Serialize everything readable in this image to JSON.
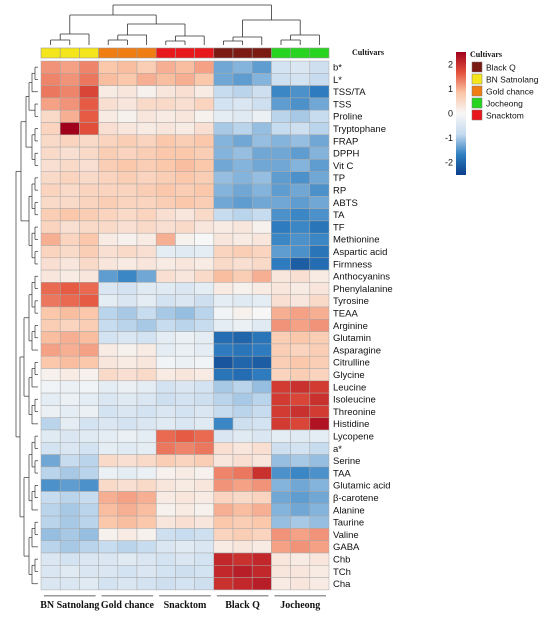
{
  "chart_data": {
    "type": "heatmap",
    "annotation_title": "Cultivars",
    "column_groups": [
      {
        "name": "BN Satnolang",
        "color": "#f5e61b",
        "n": 3
      },
      {
        "name": "Gold chance",
        "color": "#ef7d12",
        "n": 3
      },
      {
        "name": "Snacktom",
        "color": "#e8171b",
        "n": 3
      },
      {
        "name": "Black Q",
        "color": "#7a1a12",
        "n": 3
      },
      {
        "name": "Jocheong",
        "color": "#27d41f",
        "n": 3
      }
    ],
    "column_order": [
      "BN Satnolang",
      "Gold chance",
      "Snacktom",
      "Black Q",
      "Jocheong"
    ],
    "legend_order": [
      "Black Q",
      "BN Satnolang",
      "Gold chance",
      "Jocheong",
      "Snacktom"
    ],
    "rows": [
      "b*",
      "L*",
      "TSS/TA",
      "TSS",
      "Proline",
      "Tryptophane",
      "FRAP",
      "DPPH",
      "Vit C",
      "TP",
      "RP",
      "ABTS",
      "TA",
      "TF",
      "Methionine",
      "Aspartic acid",
      "Firmness",
      "Anthocyanins",
      "Phenylalanine",
      "Tyrosine",
      "TEAA",
      "Arginine",
      "Glutamin",
      "Asparagine",
      "Citrulline",
      "Glycine",
      "Leucine",
      "Isoleucine",
      "Threonine",
      "Histidine",
      "Lycopene",
      "a*",
      "Serine",
      "TAA",
      "Glutamic acid",
      "β-carotene",
      "Alanine",
      "Taurine",
      "Valine",
      "GABA",
      "Chb",
      "TCh",
      "Cha"
    ],
    "values": [
      [
        1.2,
        1.1,
        1.3,
        0.8,
        0.9,
        0.7,
        1.0,
        0.9,
        1.1,
        -1.3,
        -1.2,
        -1.4,
        -0.6,
        -0.5,
        -0.7
      ],
      [
        1.3,
        1.2,
        1.4,
        0.9,
        0.8,
        1.0,
        0.9,
        1.0,
        0.8,
        -1.3,
        -1.4,
        -1.2,
        -0.7,
        -0.6,
        -0.8
      ],
      [
        1.4,
        1.3,
        1.8,
        0.2,
        0.3,
        0.1,
        0.3,
        0.4,
        0.2,
        -0.8,
        -0.9,
        -0.7,
        -1.6,
        -1.5,
        -1.7
      ],
      [
        1.1,
        1.2,
        1.6,
        0.4,
        0.3,
        0.5,
        0.5,
        0.4,
        0.6,
        -0.6,
        -0.5,
        -0.7,
        -1.4,
        -1.5,
        -1.3
      ],
      [
        0.5,
        1.0,
        1.6,
        0.2,
        0.1,
        0.3,
        0.2,
        0.3,
        0.1,
        -0.3,
        -0.4,
        -0.2,
        -0.9,
        -1.0,
        -0.8
      ],
      [
        0.6,
        2.6,
        1.7,
        0.4,
        0.3,
        0.2,
        0.3,
        0.2,
        0.4,
        -1.0,
        -0.9,
        -1.1,
        -0.8,
        -0.7,
        -0.9
      ],
      [
        0.5,
        0.6,
        0.5,
        0.6,
        0.7,
        0.6,
        0.8,
        0.7,
        0.8,
        -1.2,
        -1.3,
        -1.1,
        -1.2,
        -1.1,
        -1.3
      ],
      [
        0.5,
        0.4,
        0.5,
        0.7,
        0.6,
        0.7,
        0.8,
        0.8,
        0.7,
        -1.2,
        -1.1,
        -1.3,
        -1.3,
        -1.4,
        -1.2
      ],
      [
        0.4,
        0.5,
        0.4,
        0.7,
        0.8,
        0.7,
        0.8,
        0.9,
        0.8,
        -1.3,
        -1.2,
        -1.3,
        -1.3,
        -1.2,
        -1.4
      ],
      [
        0.5,
        0.6,
        0.5,
        0.6,
        0.7,
        0.6,
        0.7,
        0.8,
        0.7,
        -1.1,
        -1.2,
        -1.1,
        -1.4,
        -1.5,
        -1.3
      ],
      [
        0.6,
        0.5,
        0.6,
        0.6,
        0.6,
        0.7,
        0.8,
        0.7,
        0.8,
        -1.2,
        -1.3,
        -1.2,
        -1.4,
        -1.3,
        -1.5
      ],
      [
        0.5,
        0.5,
        0.6,
        0.7,
        0.6,
        0.6,
        0.7,
        0.8,
        0.7,
        -1.3,
        -1.4,
        -1.3,
        -1.3,
        -1.4,
        -1.3
      ],
      [
        0.7,
        0.8,
        0.7,
        0.6,
        0.5,
        0.6,
        0.4,
        0.3,
        0.5,
        -0.8,
        -0.9,
        -0.8,
        -1.5,
        -1.6,
        -1.5
      ],
      [
        0.6,
        0.4,
        0.5,
        0.5,
        0.4,
        0.5,
        0.4,
        0.5,
        0.3,
        0.2,
        0.3,
        0.1,
        -1.7,
        -1.6,
        -1.8
      ],
      [
        1.0,
        0.6,
        0.8,
        0.2,
        0.1,
        0.2,
        1.0,
        0.1,
        0.0,
        0.3,
        0.2,
        0.3,
        -1.6,
        -1.5,
        -1.6
      ],
      [
        0.6,
        0.5,
        0.7,
        0.4,
        0.5,
        0.4,
        -0.3,
        -0.4,
        -0.3,
        0.6,
        0.7,
        0.6,
        -1.4,
        -1.5,
        -1.8
      ],
      [
        0.4,
        0.3,
        0.5,
        0.3,
        0.2,
        0.3,
        0.2,
        0.3,
        0.2,
        0.5,
        0.4,
        0.5,
        -1.7,
        -2.1,
        -1.9
      ],
      [
        0.3,
        0.2,
        0.3,
        -1.4,
        -1.6,
        -1.3,
        0.4,
        0.3,
        0.5,
        0.9,
        0.7,
        1.0,
        0.3,
        0.4,
        0.2
      ],
      [
        1.5,
        1.6,
        1.5,
        -0.5,
        -0.6,
        -0.4,
        -0.4,
        -0.5,
        -0.3,
        0.2,
        0.1,
        0.2,
        0.3,
        0.2,
        0.3
      ],
      [
        1.4,
        1.5,
        1.6,
        -0.3,
        -0.5,
        -0.3,
        -0.6,
        -0.5,
        -0.7,
        -0.3,
        -0.4,
        -0.3,
        0.4,
        0.3,
        0.5
      ],
      [
        0.8,
        0.9,
        0.8,
        -0.9,
        -1.0,
        -0.8,
        -1.0,
        -1.1,
        -0.9,
        -0.1,
        0.1,
        0.0,
        1.0,
        1.1,
        1.0
      ],
      [
        0.7,
        0.6,
        0.7,
        -0.8,
        -0.9,
        -1.0,
        -0.8,
        -0.9,
        -0.8,
        -0.3,
        -0.2,
        -0.4,
        1.2,
        1.1,
        1.2
      ],
      [
        0.9,
        1.0,
        0.9,
        -0.6,
        -0.5,
        -0.6,
        -0.3,
        -0.2,
        -0.3,
        -1.9,
        -2.0,
        -1.8,
        0.7,
        0.8,
        0.7
      ],
      [
        1.1,
        1.0,
        1.1,
        0.2,
        0.1,
        0.2,
        -0.3,
        -0.2,
        -0.3,
        -1.7,
        -1.8,
        -1.7,
        0.7,
        0.6,
        0.7
      ],
      [
        0.8,
        0.9,
        0.8,
        0.3,
        0.2,
        0.3,
        -0.1,
        -0.2,
        -0.1,
        -2.2,
        -2.0,
        -2.1,
        0.7,
        0.8,
        0.7
      ],
      [
        0.1,
        0.2,
        0.1,
        0.5,
        0.4,
        0.5,
        0.2,
        0.3,
        0.2,
        -1.8,
        -1.9,
        -1.7,
        0.6,
        0.7,
        0.6
      ],
      [
        -0.1,
        -0.2,
        -0.1,
        -0.3,
        -0.2,
        -0.3,
        -0.6,
        -0.5,
        -0.6,
        -1.0,
        -0.9,
        -1.1,
        1.9,
        2.0,
        1.9
      ],
      [
        -0.3,
        -0.2,
        -0.3,
        -0.5,
        -0.4,
        -0.5,
        -0.7,
        -0.6,
        -0.7,
        -0.9,
        -1.0,
        -0.9,
        1.9,
        1.8,
        2.0
      ],
      [
        -0.2,
        -0.3,
        -0.2,
        -0.6,
        -0.5,
        -0.6,
        -0.5,
        -0.6,
        -0.5,
        -0.8,
        -0.9,
        -0.8,
        1.9,
        2.0,
        1.9
      ],
      [
        -0.9,
        -0.3,
        -0.6,
        -0.5,
        -0.6,
        -0.5,
        -0.4,
        -0.5,
        -0.4,
        -1.6,
        -0.7,
        -0.6,
        1.9,
        1.8,
        2.3
      ],
      [
        -0.4,
        -0.5,
        -0.4,
        -0.3,
        -0.2,
        -0.3,
        1.5,
        1.6,
        1.5,
        -0.5,
        -0.4,
        -0.5,
        -0.3,
        -0.4,
        -0.3
      ],
      [
        -0.6,
        -0.5,
        -0.6,
        -0.3,
        -0.4,
        -0.3,
        1.4,
        1.3,
        1.4,
        0.4,
        0.3,
        0.4,
        -0.7,
        -0.6,
        -0.8
      ],
      [
        -1.3,
        -0.8,
        -0.9,
        0.5,
        0.4,
        0.5,
        0.7,
        0.6,
        0.7,
        0.3,
        0.4,
        0.3,
        -1.1,
        -1.0,
        -1.1
      ],
      [
        -0.9,
        -1.0,
        -0.9,
        -0.2,
        -0.3,
        -0.2,
        0.1,
        0.2,
        0.1,
        1.3,
        1.4,
        2.0,
        -1.5,
        -1.6,
        -1.5
      ],
      [
        -1.5,
        -1.4,
        -1.5,
        0.5,
        0.4,
        0.5,
        0.3,
        0.2,
        0.3,
        1.2,
        1.1,
        1.2,
        -1.2,
        -1.3,
        -1.2
      ],
      [
        -0.8,
        -0.9,
        -0.8,
        1.0,
        1.1,
        1.0,
        0.2,
        0.3,
        0.2,
        0.6,
        0.5,
        0.6,
        -1.3,
        -1.4,
        -1.3
      ],
      [
        -0.9,
        -1.0,
        -0.9,
        0.9,
        1.0,
        0.9,
        0.1,
        0.2,
        0.1,
        1.0,
        0.9,
        1.0,
        -1.2,
        -1.3,
        -1.2
      ],
      [
        -0.9,
        -1.0,
        -0.9,
        0.8,
        0.9,
        0.8,
        0.3,
        0.4,
        0.3,
        0.8,
        0.7,
        0.8,
        -1.1,
        -1.0,
        -1.1
      ],
      [
        -1.1,
        -1.0,
        -1.1,
        0.1,
        0.2,
        0.1,
        -0.7,
        -0.8,
        -0.7,
        0.6,
        0.7,
        0.6,
        1.2,
        1.1,
        1.2
      ],
      [
        -0.9,
        -1.0,
        -0.9,
        -0.8,
        -0.9,
        -0.8,
        -0.5,
        -0.4,
        -0.5,
        0.2,
        0.3,
        0.2,
        1.1,
        1.2,
        1.1
      ],
      [
        -0.5,
        -0.6,
        -0.5,
        -0.5,
        -0.4,
        -0.5,
        -0.6,
        -0.5,
        -0.6,
        2.1,
        2.0,
        2.1,
        0.3,
        0.2,
        0.3
      ],
      [
        -0.5,
        -0.4,
        -0.5,
        -0.5,
        -0.6,
        -0.5,
        -0.6,
        -0.7,
        -0.6,
        2.1,
        2.2,
        2.1,
        0.3,
        0.3,
        0.2
      ],
      [
        -0.5,
        -0.5,
        -0.4,
        -0.6,
        -0.5,
        -0.6,
        -0.7,
        -0.6,
        -0.7,
        2.0,
        2.1,
        2.2,
        0.2,
        0.3,
        0.2
      ]
    ],
    "scale": {
      "min": -2.5,
      "max": 2.5,
      "ticks": [
        2,
        1,
        0,
        -1,
        -2
      ],
      "colors": [
        "#0b3e8a",
        "#2f7fc1",
        "#c6dbef",
        "#f7f7f7",
        "#fbc6a8",
        "#e4523b",
        "#a0001c"
      ]
    },
    "row_dendrogram": true,
    "column_dendrogram": true,
    "grid": true
  }
}
